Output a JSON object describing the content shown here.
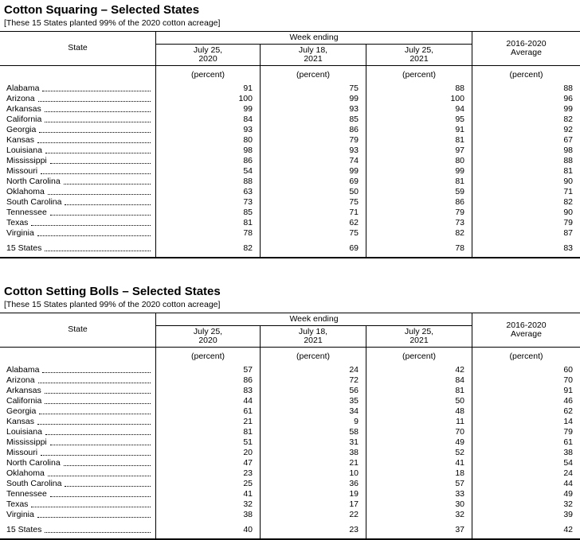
{
  "tables": [
    {
      "title": "Cotton Squaring – Selected States",
      "subtitle": "[These 15 States planted 99% of the 2020 cotton acreage]",
      "header": {
        "state_label": "State",
        "week_ending_label": "Week ending",
        "dates": [
          {
            "line1": "July 25,",
            "line2": "2020"
          },
          {
            "line1": "July 18,",
            "line2": "2021"
          },
          {
            "line1": "July 25,",
            "line2": "2021"
          }
        ],
        "average": {
          "line1": "2016-2020",
          "line2": "Average"
        },
        "unit": "(percent)"
      },
      "rows": [
        {
          "state": "Alabama",
          "values": [
            "91",
            "75",
            "88",
            "88"
          ]
        },
        {
          "state": "Arizona",
          "values": [
            "100",
            "99",
            "100",
            "96"
          ]
        },
        {
          "state": "Arkansas",
          "values": [
            "99",
            "93",
            "94",
            "99"
          ]
        },
        {
          "state": "California",
          "values": [
            "84",
            "85",
            "95",
            "82"
          ]
        },
        {
          "state": "Georgia",
          "values": [
            "93",
            "86",
            "91",
            "92"
          ]
        },
        {
          "state": "Kansas",
          "values": [
            "80",
            "79",
            "81",
            "67"
          ]
        },
        {
          "state": "Louisiana",
          "values": [
            "98",
            "93",
            "97",
            "98"
          ]
        },
        {
          "state": "Mississippi",
          "values": [
            "86",
            "74",
            "80",
            "88"
          ]
        },
        {
          "state": "Missouri",
          "values": [
            "54",
            "99",
            "99",
            "81"
          ]
        },
        {
          "state": "North Carolina",
          "values": [
            "88",
            "69",
            "81",
            "90"
          ]
        },
        {
          "state": "Oklahoma",
          "values": [
            "63",
            "50",
            "59",
            "71"
          ]
        },
        {
          "state": "South Carolina",
          "values": [
            "73",
            "75",
            "86",
            "82"
          ]
        },
        {
          "state": "Tennessee",
          "values": [
            "85",
            "71",
            "79",
            "90"
          ]
        },
        {
          "state": "Texas",
          "values": [
            "81",
            "62",
            "73",
            "79"
          ]
        },
        {
          "state": "Virginia",
          "values": [
            "78",
            "75",
            "82",
            "87"
          ]
        }
      ],
      "total": {
        "state": "15 States",
        "values": [
          "82",
          "69",
          "78",
          "83"
        ]
      }
    },
    {
      "title": "Cotton Setting Bolls – Selected States",
      "subtitle": "[These 15 States planted 99% of the 2020 cotton acreage]",
      "header": {
        "state_label": "State",
        "week_ending_label": "Week ending",
        "dates": [
          {
            "line1": "July 25,",
            "line2": "2020"
          },
          {
            "line1": "July 18,",
            "line2": "2021"
          },
          {
            "line1": "July 25,",
            "line2": "2021"
          }
        ],
        "average": {
          "line1": "2016-2020",
          "line2": "Average"
        },
        "unit": "(percent)"
      },
      "rows": [
        {
          "state": "Alabama",
          "values": [
            "57",
            "24",
            "42",
            "60"
          ]
        },
        {
          "state": "Arizona",
          "values": [
            "86",
            "72",
            "84",
            "70"
          ]
        },
        {
          "state": "Arkansas",
          "values": [
            "83",
            "56",
            "81",
            "91"
          ]
        },
        {
          "state": "California",
          "values": [
            "44",
            "35",
            "50",
            "46"
          ]
        },
        {
          "state": "Georgia",
          "values": [
            "61",
            "34",
            "48",
            "62"
          ]
        },
        {
          "state": "Kansas",
          "values": [
            "21",
            "9",
            "11",
            "14"
          ]
        },
        {
          "state": "Louisiana",
          "values": [
            "81",
            "58",
            "70",
            "79"
          ]
        },
        {
          "state": "Mississippi",
          "values": [
            "51",
            "31",
            "49",
            "61"
          ]
        },
        {
          "state": "Missouri",
          "values": [
            "20",
            "38",
            "52",
            "38"
          ]
        },
        {
          "state": "North Carolina",
          "values": [
            "47",
            "21",
            "41",
            "54"
          ]
        },
        {
          "state": "Oklahoma",
          "values": [
            "23",
            "10",
            "18",
            "24"
          ]
        },
        {
          "state": "South Carolina",
          "values": [
            "25",
            "36",
            "57",
            "44"
          ]
        },
        {
          "state": "Tennessee",
          "values": [
            "41",
            "19",
            "33",
            "49"
          ]
        },
        {
          "state": "Texas",
          "values": [
            "32",
            "17",
            "30",
            "32"
          ]
        },
        {
          "state": "Virginia",
          "values": [
            "38",
            "22",
            "32",
            "39"
          ]
        }
      ],
      "total": {
        "state": "15 States",
        "values": [
          "40",
          "23",
          "37",
          "42"
        ]
      }
    }
  ]
}
